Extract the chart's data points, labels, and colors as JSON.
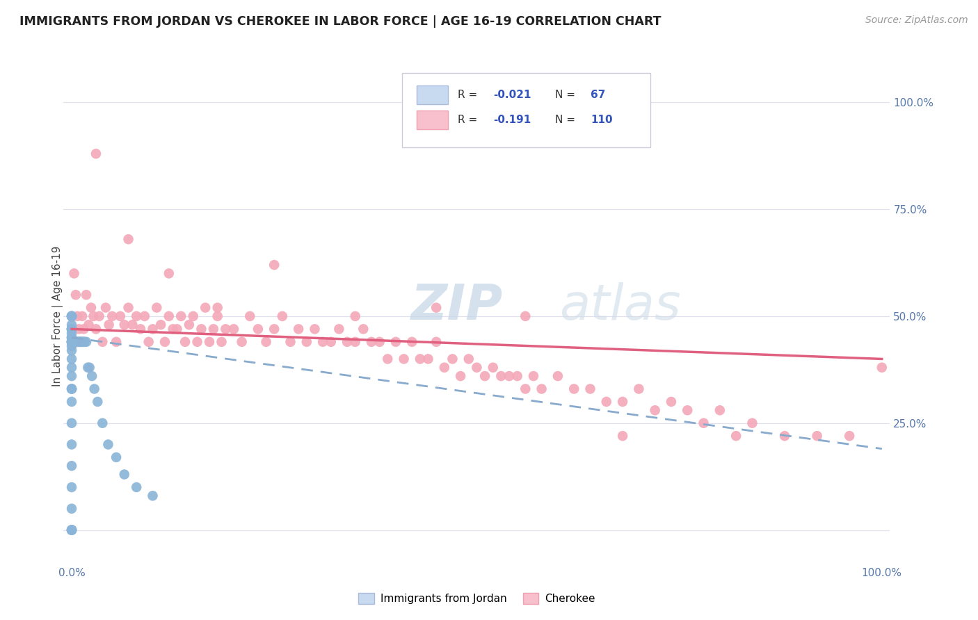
{
  "title": "IMMIGRANTS FROM JORDAN VS CHEROKEE IN LABOR FORCE | AGE 16-19 CORRELATION CHART",
  "source": "Source: ZipAtlas.com",
  "ylabel": "In Labor Force | Age 16-19",
  "right_yticks": [
    "100.0%",
    "75.0%",
    "50.0%",
    "25.0%"
  ],
  "right_ytick_vals": [
    1.0,
    0.75,
    0.5,
    0.25
  ],
  "jordan_color": "#8ab4d8",
  "cherokee_color": "#f4a8b8",
  "jordan_trend_color": "#88aacc",
  "cherokee_trend_color": "#e06080",
  "legend1_face": "#c8daf0",
  "legend2_face": "#f8c0cc",
  "watermark_zip": "ZIP",
  "watermark_atlas": "atlas",
  "jordan_R": "-0.021",
  "jordan_N": "67",
  "cherokee_R": "-0.191",
  "cherokee_N": "110",
  "jordan_points_x": [
    0.0,
    0.0,
    0.0,
    0.0,
    0.0,
    0.0,
    0.0,
    0.0,
    0.0,
    0.0,
    0.0,
    0.0,
    0.0,
    0.0,
    0.0,
    0.0,
    0.0,
    0.0,
    0.0,
    0.0,
    0.0,
    0.0,
    0.0,
    0.0,
    0.0,
    0.0,
    0.0,
    0.0,
    0.0,
    0.0,
    0.0,
    0.0,
    0.0,
    0.0,
    0.0,
    0.0,
    0.0,
    0.0,
    0.0,
    0.0,
    0.002,
    0.003,
    0.004,
    0.005,
    0.006,
    0.007,
    0.008,
    0.009,
    0.01,
    0.011,
    0.012,
    0.013,
    0.014,
    0.015,
    0.016,
    0.018,
    0.02,
    0.022,
    0.025,
    0.028,
    0.032,
    0.038,
    0.045,
    0.055,
    0.065,
    0.08,
    0.1
  ],
  "jordan_points_y": [
    0.0,
    0.0,
    0.0,
    0.0,
    0.0,
    0.05,
    0.1,
    0.15,
    0.2,
    0.25,
    0.3,
    0.33,
    0.33,
    0.33,
    0.36,
    0.38,
    0.4,
    0.42,
    0.43,
    0.44,
    0.44,
    0.44,
    0.44,
    0.44,
    0.44,
    0.45,
    0.45,
    0.45,
    0.46,
    0.47,
    0.47,
    0.47,
    0.47,
    0.47,
    0.48,
    0.5,
    0.5,
    0.5,
    0.5,
    0.5,
    0.44,
    0.44,
    0.44,
    0.44,
    0.44,
    0.44,
    0.44,
    0.44,
    0.44,
    0.44,
    0.44,
    0.44,
    0.44,
    0.44,
    0.44,
    0.44,
    0.38,
    0.38,
    0.36,
    0.33,
    0.3,
    0.25,
    0.2,
    0.17,
    0.13,
    0.1,
    0.08
  ],
  "cherokee_points_x": [
    0.003,
    0.005,
    0.007,
    0.009,
    0.011,
    0.013,
    0.015,
    0.018,
    0.021,
    0.024,
    0.027,
    0.03,
    0.034,
    0.038,
    0.042,
    0.046,
    0.05,
    0.055,
    0.06,
    0.065,
    0.07,
    0.075,
    0.08,
    0.085,
    0.09,
    0.095,
    0.1,
    0.105,
    0.11,
    0.115,
    0.12,
    0.125,
    0.13,
    0.135,
    0.14,
    0.145,
    0.15,
    0.155,
    0.16,
    0.165,
    0.17,
    0.175,
    0.18,
    0.185,
    0.19,
    0.2,
    0.21,
    0.22,
    0.23,
    0.24,
    0.25,
    0.26,
    0.27,
    0.28,
    0.29,
    0.3,
    0.31,
    0.32,
    0.33,
    0.34,
    0.35,
    0.36,
    0.37,
    0.38,
    0.39,
    0.4,
    0.41,
    0.42,
    0.43,
    0.44,
    0.45,
    0.46,
    0.47,
    0.48,
    0.49,
    0.5,
    0.51,
    0.52,
    0.53,
    0.54,
    0.55,
    0.56,
    0.57,
    0.58,
    0.6,
    0.62,
    0.64,
    0.66,
    0.68,
    0.7,
    0.72,
    0.74,
    0.76,
    0.78,
    0.8,
    0.84,
    0.88,
    0.92,
    0.96,
    1.0,
    0.03,
    0.07,
    0.12,
    0.18,
    0.25,
    0.35,
    0.45,
    0.56,
    0.68,
    0.82
  ],
  "cherokee_points_y": [
    0.6,
    0.55,
    0.5,
    0.47,
    0.44,
    0.5,
    0.47,
    0.55,
    0.48,
    0.52,
    0.5,
    0.47,
    0.5,
    0.44,
    0.52,
    0.48,
    0.5,
    0.44,
    0.5,
    0.48,
    0.52,
    0.48,
    0.5,
    0.47,
    0.5,
    0.44,
    0.47,
    0.52,
    0.48,
    0.44,
    0.5,
    0.47,
    0.47,
    0.5,
    0.44,
    0.48,
    0.5,
    0.44,
    0.47,
    0.52,
    0.44,
    0.47,
    0.5,
    0.44,
    0.47,
    0.47,
    0.44,
    0.5,
    0.47,
    0.44,
    0.47,
    0.5,
    0.44,
    0.47,
    0.44,
    0.47,
    0.44,
    0.44,
    0.47,
    0.44,
    0.44,
    0.47,
    0.44,
    0.44,
    0.4,
    0.44,
    0.4,
    0.44,
    0.4,
    0.4,
    0.44,
    0.38,
    0.4,
    0.36,
    0.4,
    0.38,
    0.36,
    0.38,
    0.36,
    0.36,
    0.36,
    0.33,
    0.36,
    0.33,
    0.36,
    0.33,
    0.33,
    0.3,
    0.3,
    0.33,
    0.28,
    0.3,
    0.28,
    0.25,
    0.28,
    0.25,
    0.22,
    0.22,
    0.22,
    0.38,
    0.88,
    0.68,
    0.6,
    0.52,
    0.62,
    0.5,
    0.52,
    0.5,
    0.22,
    0.22
  ],
  "xlim": [
    -0.01,
    1.01
  ],
  "ylim": [
    -0.08,
    1.08
  ],
  "grid_color": "#e0e0ee",
  "bg_color": "#ffffff"
}
